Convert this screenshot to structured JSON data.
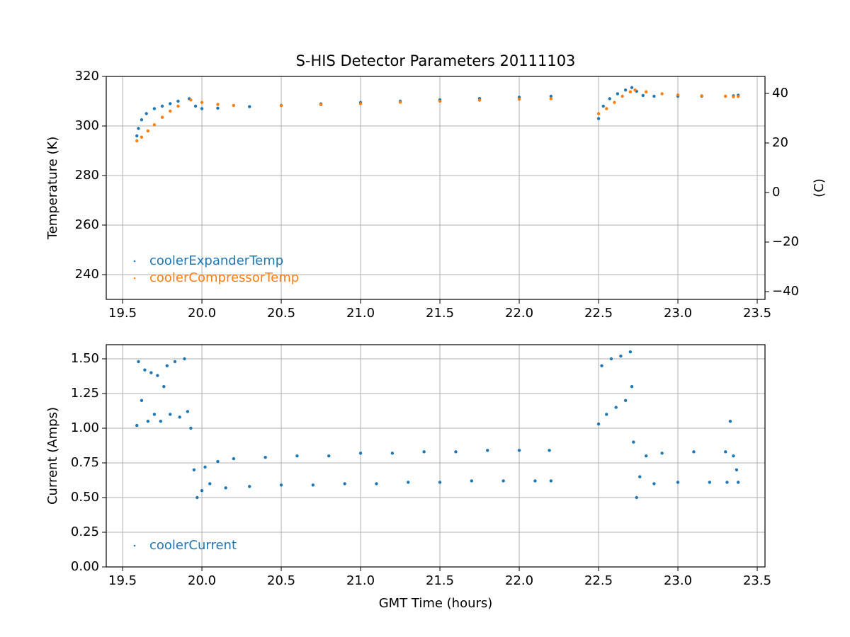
{
  "chart_data": [
    {
      "type": "scatter",
      "title": "S-HIS Detector Parameters 20111103",
      "ylabel": "Temperature (K)",
      "y2label": "(C)",
      "xlim": [
        19.397,
        23.549
      ],
      "xticks": [
        19.5,
        {
          "value": 20,
          "label": "20.0"
        },
        20.5,
        {
          "value": 21,
          "label": "21.0"
        },
        21.5,
        {
          "value": 22,
          "label": "22.0"
        },
        22.5,
        {
          "value": 23,
          "label": "23.0"
        },
        23.5
      ],
      "ylim": [
        230,
        320
      ],
      "yticks": [
        240,
        260,
        280,
        300,
        320
      ],
      "y2lim": [
        -43.15,
        46.85
      ],
      "y2ticks": [
        {
          "value": -40,
          "label": "−40"
        },
        {
          "value": -20,
          "label": "−20"
        },
        0,
        20,
        40
      ],
      "grid": true,
      "legend": "lower left",
      "series": [
        {
          "name": "coolerExpanderTemp",
          "color": "#1f77b4",
          "x": [
            19.59,
            19.6,
            19.62,
            19.65,
            19.7,
            19.75,
            19.8,
            19.85,
            19.92,
            19.96,
            20.0,
            20.1,
            20.3,
            20.5,
            20.75,
            21.0,
            21.25,
            21.5,
            21.75,
            22.0,
            22.2,
            22.5,
            22.53,
            22.57,
            22.62,
            22.67,
            22.71,
            22.74,
            22.78,
            22.85,
            23.0,
            23.15,
            23.3,
            23.35,
            23.38
          ],
          "values": [
            296,
            299,
            302.5,
            305,
            307,
            308,
            309,
            310,
            311,
            308,
            307,
            307.2,
            307.8,
            308.3,
            308.9,
            309.5,
            310,
            310.6,
            311.1,
            311.6,
            312,
            303,
            308,
            311,
            313,
            314.5,
            315.5,
            314,
            312.3,
            312,
            312,
            312,
            312,
            312.2,
            312.4
          ]
        },
        {
          "name": "coolerCompressorTemp",
          "color": "#ff7f0e",
          "x": [
            19.59,
            19.62,
            19.66,
            19.7,
            19.75,
            19.8,
            19.85,
            19.93,
            20.0,
            20.1,
            20.2,
            20.5,
            20.75,
            21.0,
            21.25,
            21.5,
            21.75,
            22.0,
            22.2,
            22.5,
            22.55,
            22.6,
            22.65,
            22.7,
            22.73,
            22.8,
            22.9,
            23.0,
            23.15,
            23.3,
            23.35,
            23.38
          ],
          "values": [
            294,
            295.5,
            298,
            300.5,
            303.5,
            306,
            308,
            310.5,
            309.5,
            308.7,
            308.3,
            308.2,
            308.6,
            309,
            309.6,
            310,
            310.4,
            310.8,
            311,
            305,
            307,
            309.5,
            312,
            313.8,
            314.5,
            313.8,
            313,
            312.5,
            312.2,
            312,
            311.8,
            311.9
          ]
        }
      ]
    },
    {
      "type": "scatter",
      "xlabel": "GMT Time (hours)",
      "ylabel": "Current (Amps)",
      "xlim": [
        19.397,
        23.549
      ],
      "xticks": [
        19.5,
        {
          "value": 20,
          "label": "20.0"
        },
        20.5,
        {
          "value": 21,
          "label": "21.0"
        },
        21.5,
        {
          "value": 22,
          "label": "22.0"
        },
        22.5,
        {
          "value": 23,
          "label": "23.0"
        },
        23.5
      ],
      "ylim": [
        0,
        1.602
      ],
      "yticks": [
        {
          "value": 0,
          "label": "0.00"
        },
        0.25,
        {
          "value": 0.5,
          "label": "0.50"
        },
        0.75,
        {
          "value": 1,
          "label": "1.00"
        },
        1.25,
        {
          "value": 1.5,
          "label": "1.50"
        }
      ],
      "grid": true,
      "legend": "lower left",
      "series": [
        {
          "name": "coolerCurrent",
          "color": "#1f77b4",
          "x": [
            19.59,
            19.6,
            19.62,
            19.64,
            19.66,
            19.68,
            19.7,
            19.72,
            19.74,
            19.76,
            19.78,
            19.8,
            19.83,
            19.86,
            19.89,
            19.91,
            19.93,
            19.95,
            19.97,
            20.0,
            20.02,
            20.05,
            20.1,
            20.15,
            20.2,
            20.3,
            20.4,
            20.5,
            20.6,
            20.7,
            20.8,
            20.9,
            21.0,
            21.1,
            21.2,
            21.3,
            21.4,
            21.5,
            21.6,
            21.7,
            21.8,
            21.9,
            22.0,
            22.1,
            22.19,
            22.2,
            22.5,
            22.52,
            22.55,
            22.58,
            22.61,
            22.64,
            22.67,
            22.7,
            22.71,
            22.72,
            22.74,
            22.76,
            22.8,
            22.85,
            22.9,
            23.0,
            23.1,
            23.2,
            23.3,
            23.31,
            23.33,
            23.35,
            23.37,
            23.38
          ],
          "values": [
            1.02,
            1.48,
            1.2,
            1.42,
            1.05,
            1.4,
            1.1,
            1.38,
            1.05,
            1.3,
            1.45,
            1.1,
            1.48,
            1.08,
            1.5,
            1.12,
            1.0,
            0.7,
            0.5,
            0.55,
            0.72,
            0.6,
            0.76,
            0.57,
            0.78,
            0.58,
            0.79,
            0.59,
            0.8,
            0.59,
            0.8,
            0.6,
            0.82,
            0.6,
            0.82,
            0.61,
            0.83,
            0.61,
            0.83,
            0.62,
            0.84,
            0.62,
            0.84,
            0.62,
            0.84,
            0.62,
            1.03,
            1.45,
            1.1,
            1.5,
            1.15,
            1.52,
            1.2,
            1.55,
            1.3,
            0.9,
            0.5,
            0.65,
            0.8,
            0.6,
            0.82,
            0.61,
            0.83,
            0.61,
            0.83,
            0.61,
            1.05,
            0.8,
            0.7,
            0.61
          ]
        }
      ]
    }
  ]
}
